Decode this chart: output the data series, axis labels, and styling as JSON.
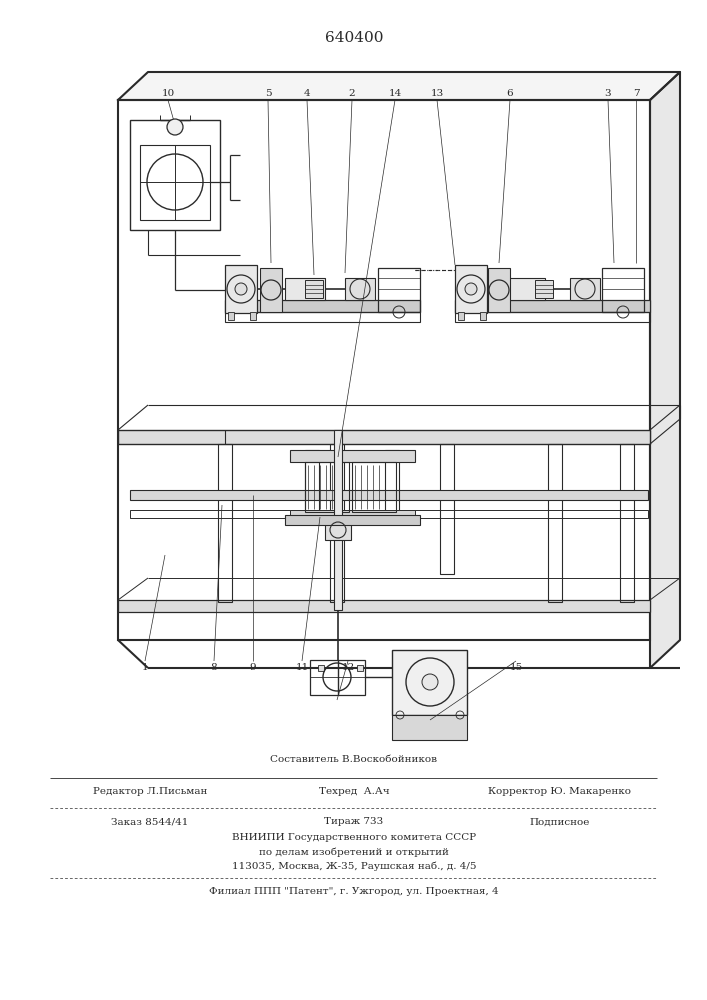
{
  "patent_number": "640400",
  "bg_color": "#ffffff",
  "line_color": "#2a2a2a",
  "footer": {
    "composer": "Составитель В.Воскобойников",
    "editor": "Редактор Л.Письман",
    "techred": "Техред  А.Ач",
    "corrector": "Корректор Ю. Макаренко",
    "order": "Заказ 8544/41",
    "tirazh": "Тираж 733",
    "podpisnoe": "Подписное",
    "vniipp1": "ВНИИПИ Государственного комитета СССР",
    "vniipp2": "по делам изобретений и открытий",
    "vniipp3": "113035, Москва, Ж-35, Раушская наб., д. 4/5",
    "filial": "Филиал ППП \"Патент\", г. Ужгород, ул. Проектная, 4"
  }
}
